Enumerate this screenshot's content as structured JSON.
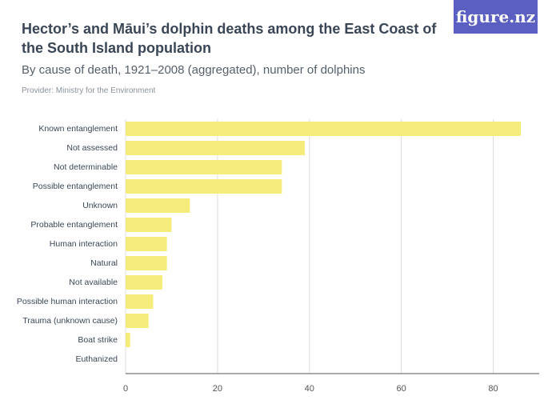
{
  "logo": "figure.nz",
  "chart_data": {
    "type": "hbar",
    "title": "Hector’s and Māui’s dolphin deaths among the East Coast of the South Island population",
    "subtitle": "By cause of death, 1921–2008 (aggregated), number of dolphins",
    "source": "Provider: Ministry for the Environment",
    "categories": [
      "Known entanglement",
      "Not assessed",
      "Not determinable",
      "Possible entanglement",
      "Unknown",
      "Probable entanglement",
      "Human interaction",
      "Natural",
      "Not available",
      "Possible human interaction",
      "Trauma (unknown cause)",
      "Boat strike",
      "Euthanized"
    ],
    "values": [
      86,
      39,
      34,
      34,
      14,
      10,
      9,
      9,
      8,
      6,
      5,
      1,
      0
    ],
    "color": "#f6ec7b",
    "xlim": [
      0,
      90
    ],
    "xticks": [
      0,
      20,
      40,
      60,
      80
    ],
    "grid": true
  }
}
